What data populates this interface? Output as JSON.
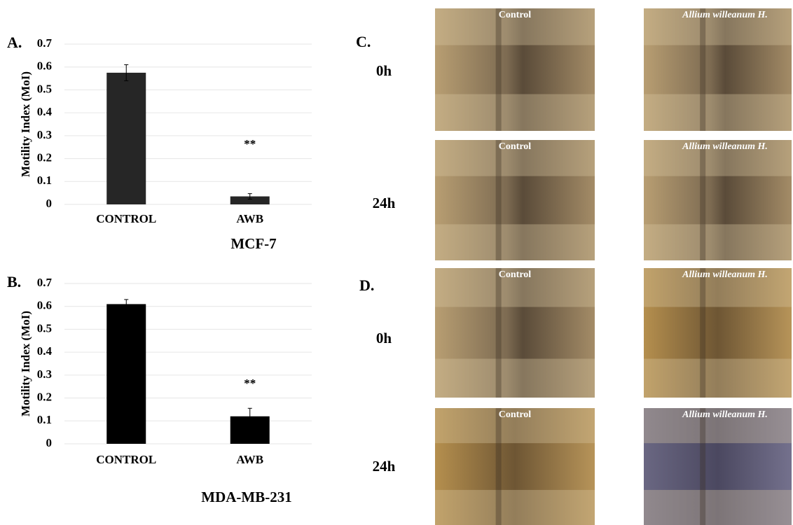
{
  "chart_data": [
    {
      "type": "bar",
      "panel": "A.",
      "ylabel": "Motility Index (MoI)",
      "subtitle": "MCF-7",
      "categories": [
        "CONTROL",
        "AWB"
      ],
      "values": [
        0.575,
        0.035
      ],
      "errors": [
        0.035,
        0.012
      ],
      "annotation": "**",
      "color": "#262626",
      "ylim": [
        0,
        0.7
      ],
      "yticks": [
        0,
        0.1,
        0.2,
        0.3,
        0.4,
        0.5,
        0.6,
        0.7
      ],
      "grid": true
    },
    {
      "type": "bar",
      "panel": "B.",
      "ylabel": "Motility Index (MoI)",
      "subtitle": "MDA-MB-231",
      "categories": [
        "CONTROL",
        "AWB"
      ],
      "values": [
        0.61,
        0.12
      ],
      "errors": [
        0.02,
        0.035
      ],
      "annotation": "**",
      "color": "#000000",
      "ylim": [
        0,
        0.7
      ],
      "yticks": [
        0,
        0.1,
        0.2,
        0.3,
        0.4,
        0.5,
        0.6,
        0.7
      ],
      "grid": true
    }
  ],
  "micrographs": [
    {
      "label": "C.",
      "rows": [
        {
          "time": "0h",
          "images": [
            "Control",
            "Allium willeanum H."
          ]
        },
        {
          "time": "24h",
          "images": [
            "Control",
            "Allium willeanum H."
          ]
        }
      ]
    },
    {
      "label": "D.",
      "rows": [
        {
          "time": "0h",
          "images": [
            "Control",
            "Allium willeanum H."
          ]
        },
        {
          "time": "24h",
          "images": [
            "Control",
            "Allium willeanum H."
          ]
        }
      ]
    }
  ]
}
